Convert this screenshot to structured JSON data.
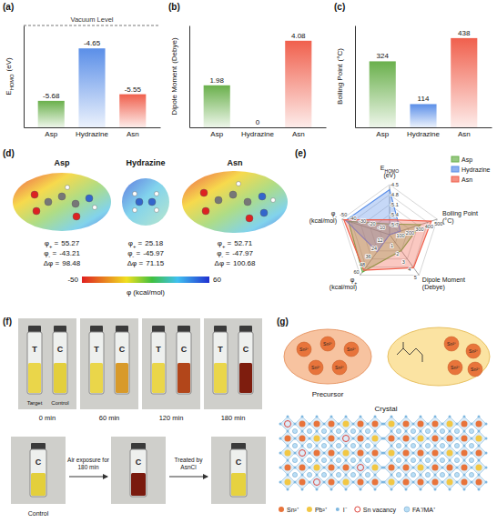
{
  "chart_data": [
    {
      "type": "bar",
      "panel": "(a)",
      "annotation": "Vacuum Level",
      "categories": [
        "Asp",
        "Hydrazine",
        "Asn"
      ],
      "values": [
        -5.68,
        -4.65,
        -5.55
      ],
      "colors": [
        "#6ab04c",
        "#5b8fe8",
        "#f0604d"
      ],
      "y_label": {
        "name": [
          "E",
          "HOMO"
        ],
        "unit": "(eV)"
      },
      "ylim": [
        -6.2,
        -4.2
      ],
      "tick_labels": "x",
      "data_labels": true
    },
    {
      "type": "bar",
      "panel": "(b)",
      "categories": [
        "Asp",
        "Hydrazine",
        "Asn"
      ],
      "values": [
        1.98,
        0,
        4.08
      ],
      "colors": [
        "#6ab04c",
        "#5b8fe8",
        "#f0604d"
      ],
      "y_label": {
        "name": [
          "Dipole Moment"
        ],
        "unit": "(Debye)"
      },
      "ylim": [
        0,
        4.8
      ],
      "tick_labels": "x",
      "data_labels": true
    },
    {
      "type": "bar",
      "panel": "(c)",
      "categories": [
        "Asp",
        "Hydrazine",
        "Asn"
      ],
      "values": [
        324,
        114,
        438
      ],
      "colors": [
        "#6ab04c",
        "#5b8fe8",
        "#f0604d"
      ],
      "y_label": {
        "name": [
          "Boiling Point"
        ],
        "unit": "(°C)"
      },
      "ylim": [
        0,
        500
      ],
      "tick_labels": "x",
      "data_labels": true
    },
    {
      "type": "radar",
      "panel": "(e)",
      "axes": [
        {
          "label": {
            "name": [
              "E",
              "HOMO"
            ],
            "unit": "(eV)"
          },
          "lim": [
            -6,
            -4.5
          ],
          "ticks": [
            -5.7,
            -5.4,
            -5.1,
            -4.8,
            -4.5
          ]
        },
        {
          "label": {
            "name": [
              "Boiling Point"
            ],
            "unit": "(°C)"
          },
          "lim": [
            0,
            500
          ],
          "ticks": [
            100,
            200,
            300,
            400,
            500
          ]
        },
        {
          "label": {
            "name": [
              "Dipole Moment"
            ],
            "unit": "(Debye)"
          },
          "lim": [
            0,
            5
          ],
          "ticks": [
            1,
            2,
            3,
            4,
            5
          ]
        },
        {
          "label": {
            "name": [
              "φ",
              "+"
            ],
            "unit": "(kcal/mol)"
          },
          "lim": [
            0,
            60
          ],
          "ticks": [
            12,
            24,
            36,
            48,
            60
          ]
        },
        {
          "label": {
            "name": [
              "φ",
              "-"
            ],
            "unit": "(kcal/mol)"
          },
          "lim": [
            0,
            -50
          ],
          "ticks": [
            -10,
            -20,
            -30,
            -40,
            -50
          ]
        }
      ],
      "series": [
        {
          "name": "Asp",
          "color": "#6ab04c",
          "values": [
            -5.68,
            324,
            1.98,
            55.27,
            -43.21
          ]
        },
        {
          "name": "Hydrazine",
          "color": "#5b8fe8",
          "values": [
            -4.65,
            114,
            0,
            25.18,
            -45.97
          ]
        },
        {
          "name": "Asn",
          "color": "#f0604d",
          "values": [
            -5.55,
            438,
            4.08,
            52.71,
            -47.97
          ]
        }
      ],
      "legend": "top-right"
    }
  ],
  "esp_maps": {
    "panel": "(d)",
    "molecules": [
      {
        "name": "Asp",
        "phi_plus": 55.27,
        "phi_minus": -43.21,
        "delta_phi": 98.48
      },
      {
        "name": "Hydrazine",
        "phi_plus": 25.18,
        "phi_minus": -45.97,
        "delta_phi": 71.15
      },
      {
        "name": "Asn",
        "phi_plus": 52.71,
        "phi_minus": -47.97,
        "delta_phi": 100.68
      }
    ],
    "prefixes": {
      "phi_plus": [
        "φ",
        "+",
        " ="
      ],
      "phi_minus": [
        "φ",
        "-",
        " ="
      ],
      "delta_phi": [
        "Δφ ="
      ]
    },
    "colorbar": {
      "range": [
        -50,
        60
      ],
      "ticks": [
        -50,
        60
      ],
      "label": "φ (kcal/mol)"
    }
  },
  "photos": {
    "panel": "(f)",
    "vial_labels": [
      "T",
      "C"
    ],
    "captions": [
      "Target",
      "Control"
    ],
    "times": [
      "0 min",
      "60 min",
      "120 min",
      "180 min"
    ],
    "bottom": {
      "vial_label": "C",
      "caption": "Control",
      "steps": [
        "Air exposure for 180 min",
        "Treated by AsnCl"
      ]
    }
  },
  "diagram": {
    "panel": "(g)",
    "precursor_label": "Precursor",
    "crystal_label": "Crystal",
    "precursors": [
      {
        "ions": [
          "Sn²⁺",
          "Sn²⁺",
          "Sn²⁺",
          "Sn²⁺",
          "Sn²⁺"
        ]
      },
      {
        "ions": [
          "Sn²⁺",
          "Sn²⁺",
          "Sn²⁺",
          "Sn²⁺"
        ]
      }
    ],
    "legend": [
      {
        "name": "Sn²⁺",
        "color": "#e8743b"
      },
      {
        "name": "Pb²⁺",
        "color": "#f2c744"
      },
      {
        "name": "I⁻",
        "color": "#7fb8e0"
      },
      {
        "name": "Sn vacancy",
        "color": "#d9342b"
      },
      {
        "name": "FA⁺/MA⁺",
        "color": "#b9def5"
      }
    ]
  }
}
